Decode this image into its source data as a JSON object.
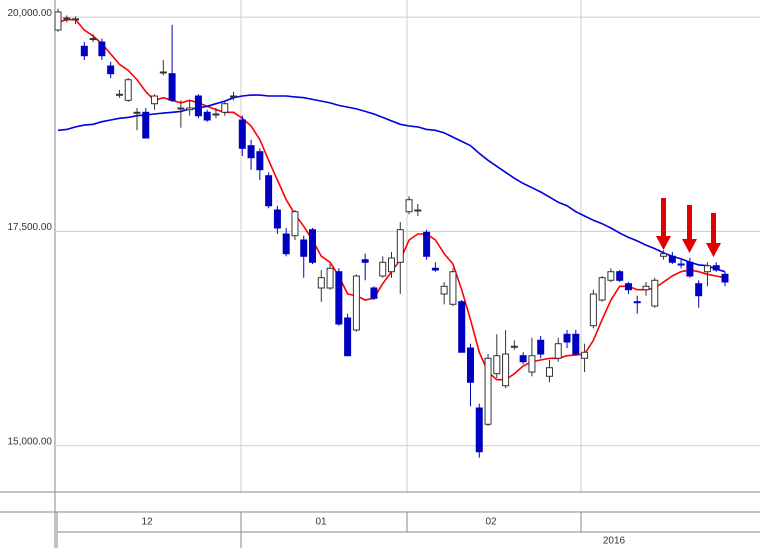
{
  "chart_data": {
    "type": "candlestick",
    "up_color": "#ffffff",
    "down_color": "#0000c0",
    "ylim": [
      14460,
      20200
    ],
    "yticks": [
      {
        "value": 15000,
        "label": "15,000.00"
      },
      {
        "value": 17500,
        "label": "17,500.00"
      },
      {
        "value": 20000,
        "label": "20,000.00"
      }
    ],
    "grid": true,
    "open": [
      19850,
      19980,
      19970,
      19660,
      19740,
      19710,
      19430,
      19090,
      19030,
      18880,
      18890,
      18990,
      19350,
      19340,
      18930,
      18920,
      19080,
      18890,
      18860,
      18890,
      19070,
      18800,
      18500,
      18430,
      18150,
      17750,
      17470,
      17450,
      17400,
      17520,
      16840,
      16840,
      17030,
      16490,
      16350,
      17170,
      16840,
      16980,
      17030,
      17140,
      17730,
      17740,
      17490,
      17070,
      16770,
      16650,
      16680,
      16140,
      15440,
      15250,
      15840,
      15700,
      16150,
      16050,
      15860,
      16230,
      15810,
      16020,
      16300,
      16300,
      16020,
      16400,
      16700,
      16930,
      17030,
      16890,
      16680,
      16820,
      16630,
      17210,
      17210,
      17120,
      17140,
      16890,
      17030,
      17100,
      17000
    ],
    "high": [
      20100,
      20020,
      20010,
      19710,
      19800,
      19750,
      19480,
      19150,
      19290,
      18940,
      18940,
      19100,
      19500,
      19910,
      19030,
      19030,
      19100,
      18920,
      18940,
      19010,
      19130,
      18850,
      18570,
      18470,
      18190,
      17800,
      17540,
      17750,
      17450,
      17540,
      17050,
      17120,
      17070,
      16540,
      17000,
      17240,
      16860,
      17210,
      17260,
      17610,
      17910,
      17820,
      17520,
      17140,
      16910,
      17070,
      16700,
      16190,
      15490,
      16070,
      16300,
      16350,
      16230,
      16090,
      16260,
      16280,
      16000,
      16260,
      16350,
      16350,
      16190,
      16820,
      16980,
      17070,
      17050,
      16910,
      16750,
      16910,
      16960,
      17280,
      17260,
      17170,
      17190,
      16930,
      17140,
      17140,
      17030
    ],
    "low": [
      19830,
      19940,
      19920,
      19500,
      19710,
      19500,
      19290,
      19060,
      19010,
      18680,
      18590,
      18920,
      19320,
      19010,
      18710,
      18850,
      18820,
      18780,
      18820,
      18850,
      19030,
      18380,
      18220,
      18100,
      17770,
      17470,
      17210,
      17400,
      16960,
      17120,
      16680,
      16820,
      16400,
      16050,
      16330,
      16930,
      16700,
      16960,
      16960,
      16770,
      17700,
      17680,
      17170,
      17030,
      16650,
      16630,
      16090,
      15460,
      14860,
      15230,
      15790,
      15670,
      16120,
      15950,
      15810,
      16020,
      15740,
      15980,
      16140,
      16050,
      15860,
      16370,
      16680,
      16910,
      16910,
      16770,
      16540,
      16750,
      16610,
      17170,
      17120,
      17070,
      16960,
      16610,
      16860,
      17030,
      16860
    ],
    "close": [
      20060,
      19990,
      19980,
      19550,
      19750,
      19550,
      19340,
      19100,
      19270,
      18890,
      18590,
      19080,
      19360,
      19030,
      18940,
      18940,
      18850,
      18800,
      18870,
      18990,
      19080,
      18470,
      18360,
      18220,
      17800,
      17540,
      17240,
      17730,
      17210,
      17140,
      16960,
      17070,
      16420,
      16050,
      16980,
      17140,
      16720,
      17140,
      17190,
      17520,
      17870,
      17750,
      17210,
      17050,
      16860,
      17030,
      16090,
      15740,
      14930,
      16020,
      16050,
      16070,
      16160,
      15980,
      16050,
      16070,
      15910,
      16190,
      16210,
      16070,
      16090,
      16770,
      16960,
      17030,
      16930,
      16820,
      16670,
      16860,
      16930,
      17240,
      17140,
      17110,
      16980,
      16750,
      17100,
      17050,
      16910
    ],
    "lines": [
      {
        "color": "#ff0000",
        "values": [
          19940,
          19970,
          19970,
          19850,
          19780,
          19690,
          19570,
          19450,
          19380,
          19270,
          19130,
          19030,
          19060,
          19030,
          19000,
          19030,
          19000,
          18960,
          18920,
          18890,
          18890,
          18820,
          18730,
          18570,
          18330,
          18100,
          17870,
          17700,
          17560,
          17400,
          17210,
          17140,
          16980,
          16770,
          16750,
          16700,
          16720,
          16890,
          17030,
          17170,
          17400,
          17470,
          17470,
          17400,
          17240,
          17120,
          16820,
          16470,
          16090,
          15860,
          15770,
          15770,
          15840,
          15930,
          15980,
          16000,
          16020,
          16020,
          16050,
          16060,
          16070,
          16230,
          16470,
          16700,
          16860,
          16860,
          16820,
          16820,
          16840,
          16910,
          16980,
          17030,
          17050,
          17030,
          17000,
          16980,
          16960
        ]
      },
      {
        "color": "#0000e0",
        "values": [
          18680,
          18690,
          18720,
          18740,
          18750,
          18780,
          18800,
          18820,
          18830,
          18850,
          18860,
          18870,
          18880,
          18890,
          18900,
          18930,
          18940,
          18960,
          18990,
          19020,
          19060,
          19080,
          19090,
          19090,
          19080,
          19080,
          19080,
          19070,
          19060,
          19040,
          19020,
          19000,
          18970,
          18950,
          18930,
          18900,
          18870,
          18830,
          18790,
          18750,
          18730,
          18720,
          18690,
          18680,
          18650,
          18600,
          18550,
          18500,
          18410,
          18330,
          18260,
          18190,
          18120,
          18060,
          18010,
          17960,
          17900,
          17840,
          17800,
          17730,
          17680,
          17630,
          17590,
          17540,
          17480,
          17430,
          17390,
          17340,
          17300,
          17250,
          17210,
          17180,
          17140,
          17110,
          17100,
          17060,
          17030
        ]
      }
    ],
    "months": [
      "12",
      "01",
      "02"
    ],
    "year_label": "2016"
  }
}
